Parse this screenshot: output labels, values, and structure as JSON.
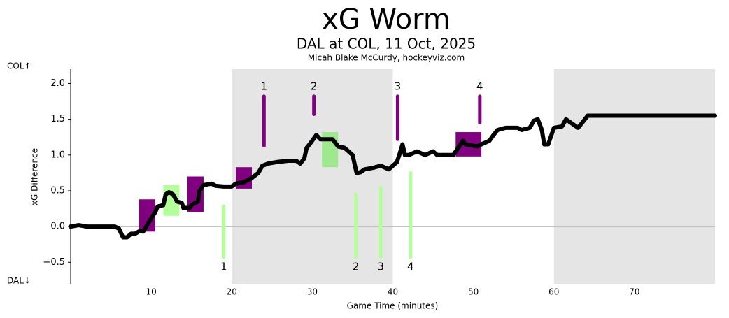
{
  "chart_data": {
    "type": "line",
    "title": "xG Worm",
    "subtitle": "DAL at COL, 11 Oct, 2025",
    "credit": "Micah Blake McCurdy, hockeyviz.com",
    "xlabel": "Game Time (minutes)",
    "ylabel": "xG Difference",
    "top_label": "COL↑",
    "bottom_label": "DAL↓",
    "xlim": [
      0,
      80
    ],
    "ylim": [
      -0.8,
      2.2
    ],
    "xticks": [
      10,
      20,
      30,
      40,
      50,
      60,
      70
    ],
    "yticks": [
      {
        "value": -0.5,
        "label": "−0.5"
      },
      {
        "value": 0,
        "label": "0.0"
      },
      {
        "value": 0.5,
        "label": "0.5"
      },
      {
        "value": 1,
        "label": "1.0"
      },
      {
        "value": 1.5,
        "label": "1.5"
      },
      {
        "value": 2,
        "label": "2.0"
      }
    ],
    "hline": 0,
    "shaded_periods": [
      [
        20,
        40
      ],
      [
        60,
        80
      ]
    ],
    "series": [
      {
        "color": "#000000",
        "x": [
          0,
          1,
          2,
          4,
          5.5,
          6,
          6.5,
          7,
          7.5,
          8,
          8.6,
          9,
          9.4,
          9.8,
          10.2,
          10.5,
          10.8,
          11.5,
          11.8,
          12.2,
          12.7,
          13.2,
          13.8,
          14,
          14.8,
          15,
          15.8,
          16,
          16.5,
          17.5,
          18,
          19,
          20,
          20.5,
          21.5,
          22.5,
          23.3,
          23.8,
          24.5,
          25.5,
          27,
          28,
          28.5,
          29,
          29.3,
          29.8,
          30.5,
          31,
          32.5,
          33.2,
          34,
          35,
          35.5,
          36,
          36.5,
          37.5,
          38.5,
          39.5,
          40.5,
          40.8,
          41.2,
          41.5,
          42,
          43,
          44,
          45,
          45.5,
          47.5,
          48,
          48.7,
          49,
          50.5,
          51,
          52,
          52.5,
          53,
          54,
          55.5,
          56,
          57,
          57.5,
          58,
          58.5,
          58.8,
          59.3,
          59.6,
          60,
          61,
          61.5,
          62.5,
          63,
          63.5,
          64.2,
          70,
          80
        ],
        "values": [
          0,
          0.02,
          0,
          0,
          0,
          -0.03,
          -0.15,
          -0.15,
          -0.1,
          -0.1,
          -0.06,
          -0.07,
          0,
          0.08,
          0.15,
          0.2,
          0.28,
          0.3,
          0.45,
          0.48,
          0.45,
          0.35,
          0.33,
          0.26,
          0.26,
          0.3,
          0.35,
          0.5,
          0.58,
          0.6,
          0.57,
          0.56,
          0.56,
          0.6,
          0.62,
          0.68,
          0.75,
          0.85,
          0.88,
          0.9,
          0.92,
          0.92,
          0.88,
          0.95,
          1.1,
          1.17,
          1.28,
          1.22,
          1.22,
          1.12,
          1.1,
          1,
          0.75,
          0.76,
          0.8,
          0.82,
          0.85,
          0.8,
          0.9,
          1,
          1.15,
          1,
          1,
          1.05,
          1,
          1.05,
          1,
          1,
          1.08,
          1.2,
          1.15,
          1.12,
          1.15,
          1.2,
          1.28,
          1.35,
          1.38,
          1.38,
          1.35,
          1.38,
          1.48,
          1.5,
          1.35,
          1.15,
          1.15,
          1.25,
          1.38,
          1.4,
          1.5,
          1.42,
          1.38,
          1.45,
          1.55,
          1.55,
          1.55
        ]
      }
    ],
    "col_goals": {
      "color": "#800080",
      "labels": [
        "1",
        "2",
        "3",
        "4"
      ],
      "x": [
        24,
        30.2,
        40.6,
        50.8
      ],
      "low": [
        1.13,
        1.57,
        1.22,
        1.45
      ],
      "high": [
        1.82,
        1.82,
        1.82,
        1.82
      ]
    },
    "dal_goals": {
      "color": "#b5ff9a",
      "labels": [
        "1",
        "2",
        "3",
        "4"
      ],
      "x": [
        19,
        35.4,
        38.5,
        42.2
      ],
      "low": [
        -0.43,
        -0.43,
        -0.43,
        -0.43
      ],
      "high": [
        0.28,
        0.45,
        0.55,
        0.75
      ]
    },
    "penalties": [
      {
        "color": "#800080",
        "x": [
          8.5,
          10.5
        ],
        "y": [
          -0.07,
          0.38
        ]
      },
      {
        "color": "#b5ff9a",
        "x": [
          11.5,
          13.5
        ],
        "y": [
          0.15,
          0.58
        ]
      },
      {
        "color": "#800080",
        "x": [
          14.5,
          16.5
        ],
        "y": [
          0.2,
          0.7
        ]
      },
      {
        "color": "#800080",
        "x": [
          20.5,
          22.5
        ],
        "y": [
          0.53,
          0.83
        ]
      },
      {
        "color": "#a0e890",
        "x": [
          31.2,
          33.2
        ],
        "y": [
          0.83,
          1.32
        ]
      },
      {
        "color": "#800080",
        "x": [
          47.8,
          51
        ],
        "y": [
          0.98,
          1.32
        ]
      }
    ]
  }
}
